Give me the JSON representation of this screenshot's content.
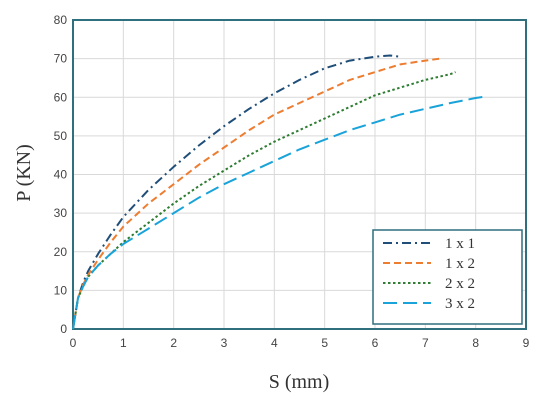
{
  "chart_data": {
    "type": "line",
    "xlabel": "S (mm)",
    "ylabel": "P (KN)",
    "xlim": [
      0,
      9
    ],
    "ylim": [
      0,
      80
    ],
    "xticks": [
      0,
      1,
      2,
      3,
      4,
      5,
      6,
      7,
      8,
      9
    ],
    "yticks": [
      0,
      10,
      20,
      30,
      40,
      50,
      60,
      70,
      80
    ],
    "grid": true,
    "legend_position": "bottom-right",
    "series": [
      {
        "name": "1 x 1",
        "color": "#1f4e79",
        "dash": "dash-dot",
        "x": [
          0,
          0.1,
          0.2,
          0.3,
          0.5,
          0.75,
          1.0,
          1.5,
          2.0,
          2.5,
          3.0,
          3.5,
          4.0,
          4.5,
          5.0,
          5.5,
          6.0,
          6.3,
          6.5
        ],
        "y": [
          0,
          8,
          12,
          15,
          19.5,
          24.5,
          29,
          36,
          42,
          47.5,
          52.5,
          57,
          61,
          64.5,
          67.5,
          69.5,
          70.5,
          70.8,
          70.5
        ]
      },
      {
        "name": "1 x 2",
        "color": "#ed7d31",
        "dash": "dash",
        "x": [
          0,
          0.1,
          0.2,
          0.3,
          0.5,
          0.75,
          1.0,
          1.5,
          2.0,
          2.5,
          3.0,
          3.5,
          4.0,
          4.5,
          5.0,
          5.5,
          6.0,
          6.5,
          7.0,
          7.3
        ],
        "y": [
          0,
          8,
          11.5,
          14,
          18,
          22.5,
          26.5,
          32.5,
          37.5,
          42.5,
          47,
          51.5,
          55.5,
          58.5,
          61.5,
          64.5,
          66.5,
          68.5,
          69.5,
          70
        ]
      },
      {
        "name": "2 x 2",
        "color": "#2e7d32",
        "dash": "dot",
        "x": [
          0,
          0.1,
          0.2,
          0.3,
          0.5,
          0.75,
          1.0,
          1.5,
          2.0,
          2.5,
          3.0,
          3.5,
          4.0,
          4.5,
          5.0,
          5.5,
          6.0,
          6.5,
          7.0,
          7.5,
          7.6
        ],
        "y": [
          0,
          8,
          11,
          13.5,
          16.5,
          19.5,
          22.5,
          27.5,
          32.5,
          37,
          41,
          45,
          48.5,
          51.5,
          54.5,
          57.5,
          60.5,
          62.5,
          64.5,
          66,
          66.5
        ]
      },
      {
        "name": "3 x 2",
        "color": "#1aa3d9",
        "dash": "long-dash",
        "x": [
          0,
          0.1,
          0.2,
          0.3,
          0.5,
          0.75,
          1.0,
          1.5,
          2.0,
          2.5,
          3.0,
          3.5,
          4.0,
          4.5,
          5.0,
          5.5,
          6.0,
          6.5,
          7.0,
          7.5,
          8.0,
          8.2
        ],
        "y": [
          0,
          8,
          11,
          13.5,
          16.5,
          19.5,
          22,
          26,
          30,
          34,
          37.5,
          40.5,
          43.5,
          46.5,
          49,
          51.5,
          53.5,
          55.5,
          57,
          58.5,
          59.8,
          60.2
        ]
      }
    ]
  }
}
